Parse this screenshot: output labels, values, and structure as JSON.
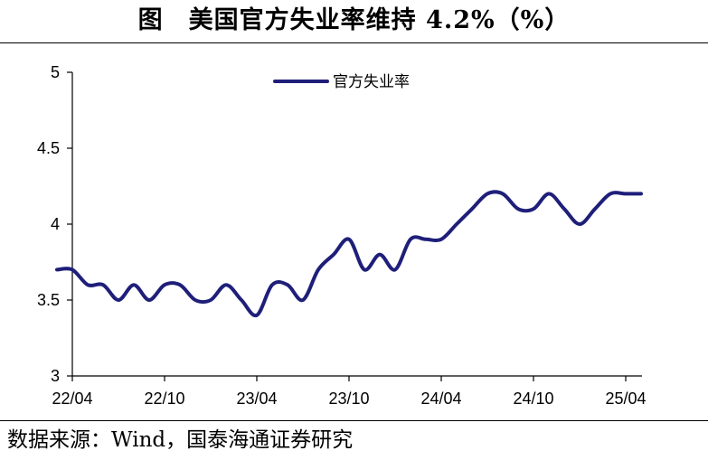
{
  "title": "图　美国官方失业率维持 4.2%（%）",
  "source": "数据来源：Wind，国泰海通证券研究",
  "colors": {
    "line": "#1f1f7a",
    "axis": "#000000"
  },
  "chart_data": {
    "type": "line",
    "ylim": [
      3,
      5
    ],
    "yticks": [
      "3",
      "3.5",
      "4",
      "4.5",
      "5"
    ],
    "xticks": [
      "22/04",
      "22/10",
      "23/04",
      "23/10",
      "24/04",
      "24/10",
      "25/04"
    ],
    "legend": "top-center",
    "grid": false,
    "series": [
      {
        "name": "官方失业率",
        "x": [
          "22/03",
          "22/04",
          "22/05",
          "22/06",
          "22/07",
          "22/08",
          "22/09",
          "22/10",
          "22/11",
          "22/12",
          "23/01",
          "23/02",
          "23/03",
          "23/04",
          "23/05",
          "23/06",
          "23/07",
          "23/08",
          "23/09",
          "23/10",
          "23/11",
          "23/12",
          "24/01",
          "24/02",
          "24/03",
          "24/04",
          "24/05",
          "24/06",
          "24/07",
          "24/08",
          "24/09",
          "24/10",
          "24/11",
          "24/12",
          "25/01",
          "25/02",
          "25/03",
          "25/04",
          "25/05"
        ],
        "values": [
          3.7,
          3.7,
          3.6,
          3.6,
          3.5,
          3.6,
          3.5,
          3.6,
          3.6,
          3.5,
          3.5,
          3.6,
          3.5,
          3.4,
          3.6,
          3.6,
          3.5,
          3.7,
          3.8,
          3.9,
          3.7,
          3.8,
          3.7,
          3.9,
          3.9,
          3.9,
          4.0,
          4.1,
          4.2,
          4.2,
          4.1,
          4.1,
          4.2,
          4.1,
          4.0,
          4.1,
          4.2,
          4.2,
          4.2
        ]
      }
    ]
  }
}
